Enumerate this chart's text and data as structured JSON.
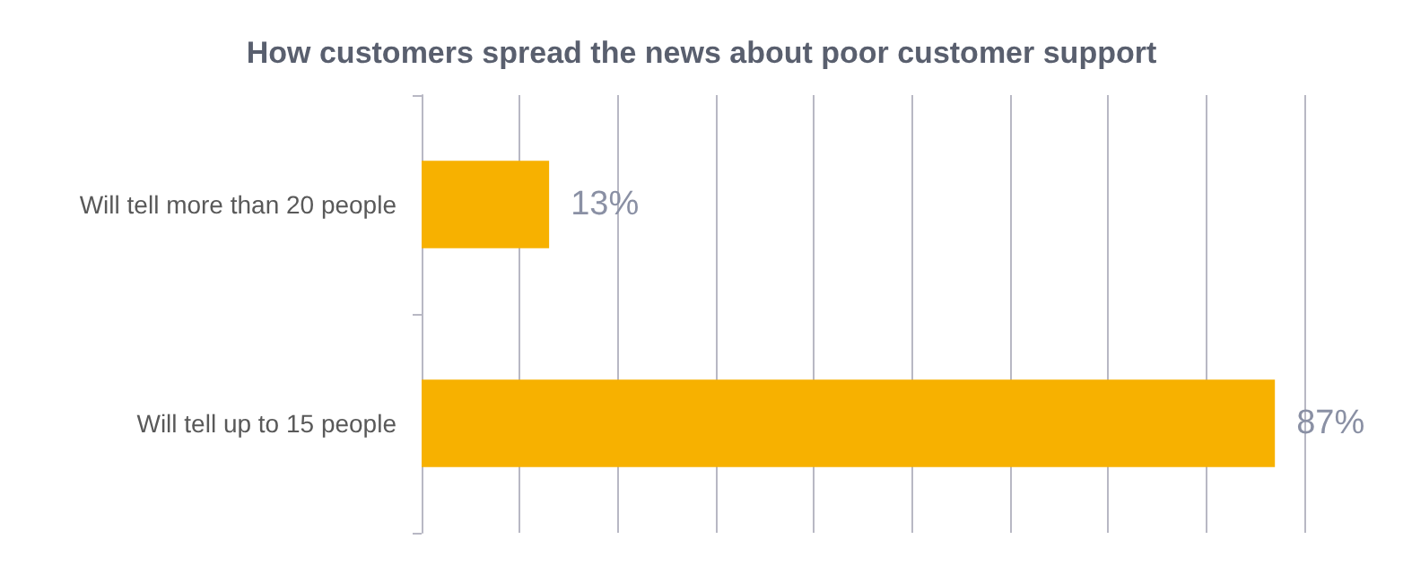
{
  "chart_data": {
    "type": "bar",
    "orientation": "horizontal",
    "title": "How customers spread the news about poor customer support",
    "categories": [
      "Will tell more than 20 people",
      "Will tell up to 15 people"
    ],
    "values": [
      13,
      87
    ],
    "color": "#f7b100",
    "value_labels": [
      "13%",
      "87%"
    ],
    "xlim": [
      0,
      90
    ],
    "xticks": [
      {
        "value": 0,
        "label": null
      },
      {
        "value": 10,
        "label": null
      },
      {
        "value": 20,
        "label": null
      },
      {
        "value": 30,
        "label": null
      },
      {
        "value": 40,
        "label": null
      },
      {
        "value": 50,
        "label": null
      },
      {
        "value": 60,
        "label": null
      },
      {
        "value": 70,
        "label": null
      },
      {
        "value": 80,
        "label": null
      },
      {
        "value": 90,
        "label": null
      }
    ],
    "grid": "x",
    "tick_labels": "y"
  }
}
